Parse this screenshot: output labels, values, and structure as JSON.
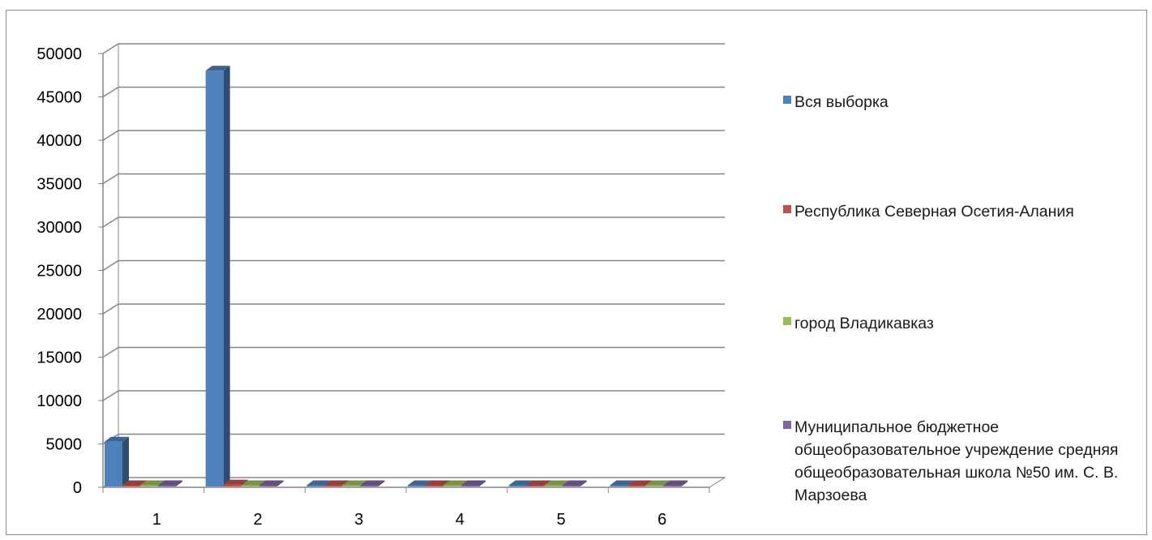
{
  "chart_data": {
    "type": "bar",
    "title": "",
    "xlabel": "",
    "ylabel": "",
    "categories": [
      "1",
      "2",
      "3",
      "4",
      "5",
      "6"
    ],
    "ylim": [
      0,
      50000
    ],
    "yticks": [
      0,
      5000,
      10000,
      15000,
      20000,
      25000,
      30000,
      35000,
      40000,
      45000,
      50000
    ],
    "grid": true,
    "legend_position": "right",
    "series": [
      {
        "name": "Вся выборка",
        "color": "#4f81bd",
        "values": [
          5260,
          48020,
          0,
          0,
          0,
          0
        ]
      },
      {
        "name": "Республика Северная Осетия-Алания",
        "color": "#c0504d",
        "values": [
          0,
          320,
          0,
          0,
          0,
          0
        ]
      },
      {
        "name": "город Владикавказ",
        "color": "#9bbb59",
        "values": [
          0,
          0,
          0,
          0,
          0,
          0
        ]
      },
      {
        "name": "Муниципальное бюджетное общеобразовательное учреждение средняя общеобразовательная школа №50 им. С. В. Марзоева",
        "color": "#8064a2",
        "values": [
          0,
          0,
          0,
          0,
          0,
          0
        ]
      }
    ]
  }
}
